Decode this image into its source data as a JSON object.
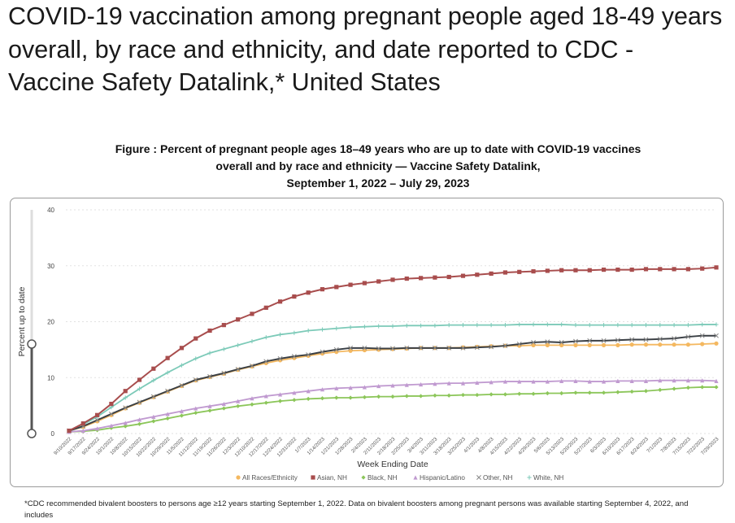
{
  "title": "COVID-19 vaccination among pregnant people aged 18-49 years overall, by race and ethnicity, and date reported to CDC - Vaccine Safety Datalink,* United States",
  "subtitle": [
    "Figure : Percent of pregnant people ages 18–49 years who are up to date with COVID-19 vaccines",
    "overall and by race and ethnicity — Vaccine Safety Datalink,",
    "September 1, 2022 – July 29, 2023"
  ],
  "footnote": "*CDC recommended bivalent boosters to persons age ≥12 years starting September 1, 2022. Data on bivalent boosters among pregnant persons was available starting September 4, 2022, and includes",
  "chart_data": {
    "type": "line",
    "xlabel": "Week Ending Date",
    "ylabel": "Percent up to date",
    "ylim": [
      0,
      40
    ],
    "yticks": [
      0,
      10,
      20,
      30,
      40
    ],
    "grid": true,
    "legend_placement": "bottom",
    "range_slider": {
      "low": 0,
      "high": 16
    },
    "x": [
      "9/10/2022",
      "9/17/2022",
      "9/24/2022",
      "10/1/2022",
      "10/8/2022",
      "10/15/2022",
      "10/22/2022",
      "10/29/2022",
      "11/5/2022",
      "11/12/2022",
      "11/19/2022",
      "11/26/2022",
      "12/3/2022",
      "12/10/2022",
      "12/17/2022",
      "12/24/2022",
      "12/31/2022",
      "1/7/2023",
      "1/14/2023",
      "1/21/2023",
      "1/28/2023",
      "2/4/2023",
      "2/11/2023",
      "2/18/2023",
      "2/25/2023",
      "3/4/2023",
      "3/11/2023",
      "3/18/2023",
      "3/25/2023",
      "4/1/2023",
      "4/8/2023",
      "4/15/2023",
      "4/22/2023",
      "4/29/2023",
      "5/6/2023",
      "5/13/2023",
      "5/20/2023",
      "5/27/2023",
      "6/3/2023",
      "6/10/2023",
      "6/17/2023",
      "6/24/2023",
      "7/1/2023",
      "7/8/2023",
      "7/15/2023",
      "7/22/2023",
      "7/29/2023"
    ],
    "series": [
      {
        "name": "White, NH",
        "color": "#7ccab8",
        "marker": "plus",
        "values": [
          0.5,
          1.6,
          3.0,
          4.7,
          6.4,
          8.0,
          9.5,
          10.9,
          12.2,
          13.4,
          14.4,
          15.1,
          15.8,
          16.5,
          17.2,
          17.7,
          18.0,
          18.4,
          18.6,
          18.8,
          19.0,
          19.1,
          19.2,
          19.2,
          19.3,
          19.3,
          19.3,
          19.4,
          19.4,
          19.4,
          19.4,
          19.4,
          19.5,
          19.5,
          19.5,
          19.5,
          19.4,
          19.4,
          19.4,
          19.4,
          19.4,
          19.4,
          19.4,
          19.4,
          19.4,
          19.5,
          19.5
        ]
      },
      {
        "name": "Black, NH",
        "color": "#8cc65a",
        "marker": "diamond",
        "values": [
          0.3,
          0.4,
          0.6,
          1.0,
          1.3,
          1.7,
          2.2,
          2.7,
          3.2,
          3.7,
          4.1,
          4.5,
          4.9,
          5.2,
          5.5,
          5.8,
          6.0,
          6.2,
          6.3,
          6.4,
          6.4,
          6.5,
          6.6,
          6.6,
          6.7,
          6.7,
          6.8,
          6.8,
          6.9,
          6.9,
          7.0,
          7.0,
          7.1,
          7.1,
          7.2,
          7.2,
          7.3,
          7.3,
          7.3,
          7.4,
          7.5,
          7.6,
          7.8,
          8.0,
          8.2,
          8.3,
          8.3
        ]
      },
      {
        "name": "Hispanic/Latino",
        "color": "#c09ad0",
        "marker": "triangle",
        "values": [
          0.3,
          0.5,
          0.9,
          1.4,
          1.9,
          2.5,
          3.0,
          3.5,
          4.0,
          4.5,
          4.9,
          5.3,
          5.8,
          6.3,
          6.7,
          7.0,
          7.3,
          7.6,
          7.9,
          8.1,
          8.2,
          8.3,
          8.5,
          8.6,
          8.7,
          8.8,
          8.9,
          9.0,
          9.0,
          9.1,
          9.2,
          9.3,
          9.3,
          9.3,
          9.3,
          9.4,
          9.4,
          9.3,
          9.3,
          9.4,
          9.4,
          9.4,
          9.5,
          9.5,
          9.5,
          9.5,
          9.4
        ]
      },
      {
        "name": "All Races/Ethnicity",
        "color": "#f4b860",
        "marker": "circle",
        "values": [
          0.5,
          1.2,
          2.2,
          3.3,
          4.5,
          5.5,
          6.5,
          7.5,
          8.5,
          9.5,
          10.1,
          10.7,
          11.4,
          12.0,
          12.6,
          13.1,
          13.5,
          13.9,
          14.3,
          14.6,
          14.8,
          14.9,
          15.0,
          15.1,
          15.2,
          15.3,
          15.3,
          15.3,
          15.4,
          15.5,
          15.6,
          15.7,
          15.7,
          15.8,
          15.8,
          15.8,
          15.8,
          15.8,
          15.8,
          15.8,
          15.9,
          15.9,
          15.9,
          15.9,
          15.9,
          16.0,
          16.1
        ]
      },
      {
        "name": "Other, NH",
        "color": "#3a3f44",
        "marker": "x",
        "values": [
          0.5,
          1.3,
          2.4,
          3.5,
          4.6,
          5.6,
          6.6,
          7.6,
          8.6,
          9.6,
          10.2,
          10.8,
          11.5,
          12.1,
          12.9,
          13.4,
          13.8,
          14.1,
          14.6,
          15.0,
          15.3,
          15.3,
          15.2,
          15.2,
          15.3,
          15.3,
          15.3,
          15.3,
          15.3,
          15.4,
          15.5,
          15.7,
          16.0,
          16.3,
          16.4,
          16.3,
          16.5,
          16.6,
          16.6,
          16.7,
          16.8,
          16.8,
          16.9,
          17.0,
          17.3,
          17.5,
          17.5
        ]
      },
      {
        "name": "Asian, NH",
        "color": "#a84d4d",
        "marker": "square",
        "values": [
          0.5,
          1.8,
          3.3,
          5.3,
          7.6,
          9.6,
          11.6,
          13.5,
          15.3,
          17.0,
          18.4,
          19.4,
          20.4,
          21.4,
          22.5,
          23.6,
          24.5,
          25.2,
          25.8,
          26.2,
          26.6,
          26.9,
          27.2,
          27.5,
          27.7,
          27.8,
          27.9,
          28.0,
          28.2,
          28.4,
          28.6,
          28.8,
          28.9,
          29.0,
          29.1,
          29.2,
          29.2,
          29.2,
          29.3,
          29.3,
          29.3,
          29.4,
          29.4,
          29.4,
          29.4,
          29.5,
          29.7
        ]
      }
    ],
    "legend_order": [
      "All Races/Ethnicity",
      "Asian, NH",
      "Black, NH",
      "Hispanic/Latino",
      "Other, NH",
      "White, NH"
    ]
  }
}
